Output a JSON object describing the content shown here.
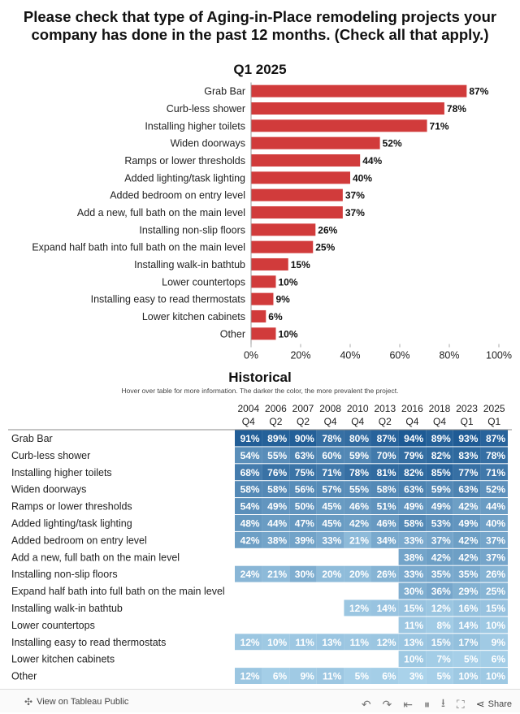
{
  "header": {
    "title_line1": "Please check that type of Aging-in-Place remodeling projects your",
    "title_line2": "company has done in the past 12 months. (Check all that apply.)"
  },
  "chart_data": [
    {
      "type": "bar",
      "orientation": "horizontal",
      "title": "Q1 2025",
      "categories": [
        "Grab Bar",
        "Curb-less shower",
        "Installing higher toilets",
        "Widen doorways",
        "Ramps or lower thresholds",
        "Added lighting/task lighting",
        "Added bedroom on entry level",
        "Add a new, full bath on the main level",
        "Installing non-slip floors",
        "Expand half bath into full bath on the main level",
        "Installing walk-in bathtub",
        "Lower countertops",
        "Installing easy to read thermostats",
        "Lower kitchen cabinets",
        "Other"
      ],
      "values": [
        87,
        78,
        71,
        52,
        44,
        40,
        37,
        37,
        26,
        25,
        15,
        10,
        9,
        6,
        10
      ],
      "data_labels": [
        "87%",
        "78%",
        "71%",
        "52%",
        "44%",
        "40%",
        "37%",
        "37%",
        "26%",
        "25%",
        "15%",
        "10%",
        "9%",
        "6%",
        "10%"
      ],
      "xlim": [
        0,
        100
      ],
      "x_ticks": [
        "0%",
        "20%",
        "40%",
        "60%",
        "80%",
        "100%"
      ],
      "bar_color": "#d13b3b"
    },
    {
      "type": "heatmap",
      "title": "Historical",
      "subtitle": "Hover over table for more information. The darker the color, the more prevalent the project.",
      "columns": [
        [
          "2004",
          "Q4"
        ],
        [
          "2006",
          "Q2"
        ],
        [
          "2007",
          "Q2"
        ],
        [
          "2008",
          "Q4"
        ],
        [
          "2010",
          "Q4"
        ],
        [
          "2013",
          "Q2"
        ],
        [
          "2016",
          "Q4"
        ],
        [
          "2018",
          "Q4"
        ],
        [
          "2023",
          "Q1"
        ],
        [
          "2025",
          "Q1"
        ]
      ],
      "rows": [
        {
          "label": "Grab Bar",
          "values": [
            91,
            89,
            90,
            78,
            80,
            87,
            94,
            89,
            93,
            87
          ]
        },
        {
          "label": "Curb-less shower",
          "values": [
            54,
            55,
            63,
            60,
            59,
            70,
            79,
            82,
            83,
            78
          ]
        },
        {
          "label": "Installing higher toilets",
          "values": [
            68,
            76,
            75,
            71,
            78,
            81,
            82,
            85,
            77,
            71
          ]
        },
        {
          "label": "Widen doorways",
          "values": [
            58,
            58,
            56,
            57,
            55,
            58,
            63,
            59,
            63,
            52
          ]
        },
        {
          "label": "Ramps or lower thresholds",
          "values": [
            54,
            49,
            50,
            45,
            46,
            51,
            49,
            49,
            42,
            44
          ]
        },
        {
          "label": "Added lighting/task lighting",
          "values": [
            48,
            44,
            47,
            45,
            42,
            46,
            58,
            53,
            49,
            40
          ]
        },
        {
          "label": "Added bedroom on entry level",
          "values": [
            42,
            38,
            39,
            33,
            21,
            34,
            33,
            37,
            42,
            37
          ]
        },
        {
          "label": "Add a new, full bath on the main level",
          "values": [
            null,
            null,
            null,
            null,
            null,
            null,
            38,
            42,
            42,
            37
          ]
        },
        {
          "label": "Installing non-slip floors",
          "values": [
            24,
            21,
            30,
            20,
            20,
            26,
            33,
            35,
            35,
            26
          ]
        },
        {
          "label": "Expand half bath into full bath on the main level",
          "values": [
            null,
            null,
            null,
            null,
            null,
            null,
            30,
            36,
            29,
            25
          ]
        },
        {
          "label": "Installing walk-in bathtub",
          "values": [
            null,
            null,
            null,
            null,
            12,
            14,
            15,
            12,
            16,
            15
          ]
        },
        {
          "label": "Lower countertops",
          "values": [
            null,
            null,
            null,
            null,
            null,
            null,
            11,
            8,
            14,
            10
          ]
        },
        {
          "label": "Installing easy to read thermostats",
          "values": [
            12,
            10,
            11,
            13,
            11,
            12,
            13,
            15,
            17,
            9
          ]
        },
        {
          "label": "Lower kitchen cabinets",
          "values": [
            null,
            null,
            null,
            null,
            null,
            null,
            10,
            7,
            5,
            6
          ]
        },
        {
          "label": "Other",
          "values": [
            12,
            6,
            9,
            11,
            5,
            6,
            3,
            5,
            10,
            10
          ]
        }
      ],
      "color_scale": {
        "low": "#a9d2ea",
        "high": "#1d5a94"
      }
    }
  ],
  "footer": {
    "view_label": "View on Tableau Public",
    "share_label": "Share",
    "icons": [
      "tableau-icon",
      "undo-icon",
      "redo-icon",
      "revert-icon",
      "pause-icon",
      "download-icon",
      "fullscreen-icon",
      "share-icon"
    ]
  }
}
